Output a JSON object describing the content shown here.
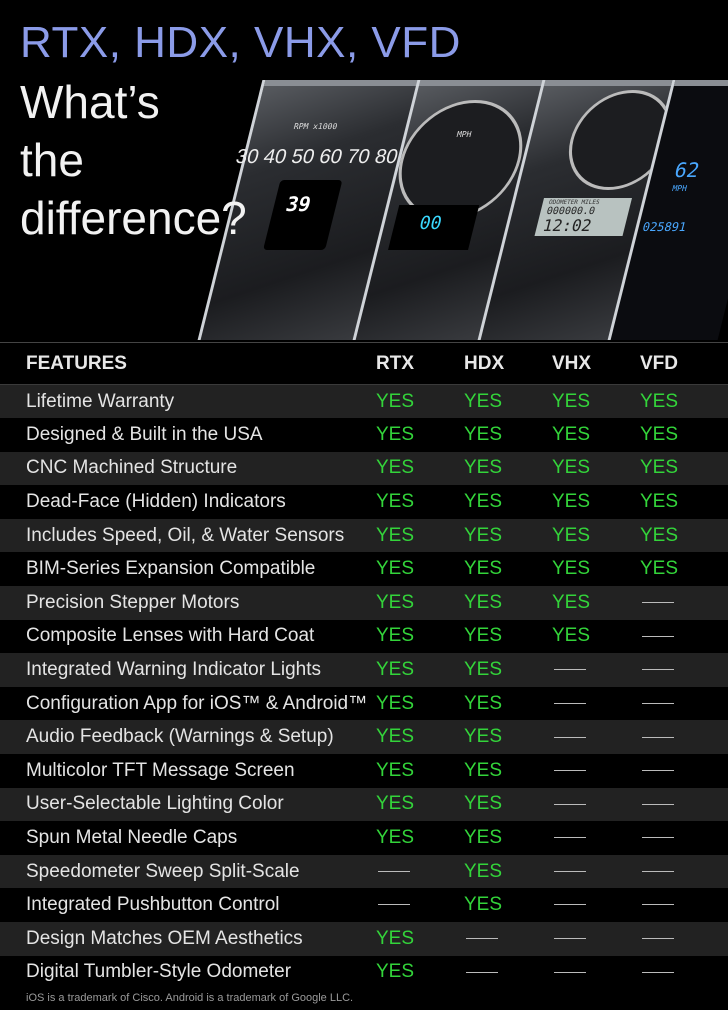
{
  "hero": {
    "title": "RTX, HDX, VHX, VFD",
    "subtitle_lines": [
      "What’s",
      "the",
      "difference?"
    ],
    "gauge_readouts": {
      "rtx_speed": "39",
      "hdx_speed": "00",
      "vhx_odometer_label": "ODOMETER MILES",
      "vhx_odometer": "000000.0",
      "vhx_clock": "12:02",
      "vfd_speed": "62",
      "vfd_unit": "MPH",
      "vfd_odometer": "025891",
      "rpm_label": "RPM x1000",
      "mph_label": "MPH",
      "speed_scale": "30 40 50 60 70 80 9"
    }
  },
  "colors": {
    "title": "#8b9be8",
    "yes": "#33d43a",
    "row_alt": "#222222",
    "background": "#000000"
  },
  "table": {
    "headers": [
      "FEATURES",
      "RTX",
      "HDX",
      "VHX",
      "VFD"
    ],
    "rows": [
      {
        "feature": "Lifetime Warranty",
        "v": [
          "YES",
          "YES",
          "YES",
          "YES"
        ]
      },
      {
        "feature": "Designed & Built in the USA",
        "v": [
          "YES",
          "YES",
          "YES",
          "YES"
        ]
      },
      {
        "feature": "CNC Machined Structure",
        "v": [
          "YES",
          "YES",
          "YES",
          "YES"
        ]
      },
      {
        "feature": "Dead-Face (Hidden) Indicators",
        "v": [
          "YES",
          "YES",
          "YES",
          "YES"
        ]
      },
      {
        "feature": "Includes Speed, Oil, & Water Sensors",
        "v": [
          "YES",
          "YES",
          "YES",
          "YES"
        ]
      },
      {
        "feature": "BIM-Series Expansion Compatible",
        "v": [
          "YES",
          "YES",
          "YES",
          "YES"
        ]
      },
      {
        "feature": "Precision Stepper Motors",
        "v": [
          "YES",
          "YES",
          "YES",
          "—"
        ]
      },
      {
        "feature": "Composite Lenses with Hard Coat",
        "v": [
          "YES",
          "YES",
          "YES",
          "—"
        ]
      },
      {
        "feature": "Integrated Warning Indicator Lights",
        "v": [
          "YES",
          "YES",
          "—",
          "—"
        ]
      },
      {
        "feature": "Configuration App for iOS™ & Android™",
        "v": [
          "YES",
          "YES",
          "—",
          "—"
        ]
      },
      {
        "feature": "Audio Feedback (Warnings & Setup)",
        "v": [
          "YES",
          "YES",
          "—",
          "—"
        ]
      },
      {
        "feature": "Multicolor TFT Message Screen",
        "v": [
          "YES",
          "YES",
          "—",
          "—"
        ]
      },
      {
        "feature": "User-Selectable Lighting Color",
        "v": [
          "YES",
          "YES",
          "—",
          "—"
        ]
      },
      {
        "feature": "Spun Metal Needle Caps",
        "v": [
          "YES",
          "YES",
          "—",
          "—"
        ]
      },
      {
        "feature": "Speedometer Sweep Split-Scale",
        "v": [
          "—",
          "YES",
          "—",
          "—"
        ]
      },
      {
        "feature": "Integrated Pushbutton Control",
        "v": [
          "—",
          "YES",
          "—",
          "—"
        ]
      },
      {
        "feature": "Design Matches OEM Aesthetics",
        "v": [
          "YES",
          "—",
          "—",
          "—"
        ]
      },
      {
        "feature": "Digital Tumbler-Style Odometer",
        "v": [
          "YES",
          "—",
          "—",
          "—"
        ]
      }
    ]
  },
  "footer": "iOS is a trademark of Cisco. Android is a trademark of Google LLC."
}
